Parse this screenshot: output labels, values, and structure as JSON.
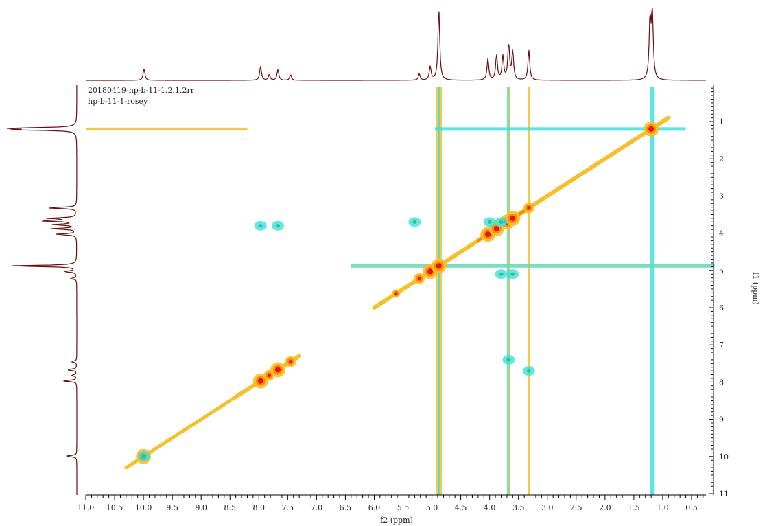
{
  "chart_data": {
    "type": "heatmap",
    "annotations": [
      "20180419-hp-b-11-1.2.1.2rr",
      "hp-b-11-1-rosey"
    ],
    "xlabel": "f2 (ppm)",
    "ylabel": "f1 (ppm)",
    "x_range": [
      11.0,
      0.0
    ],
    "y_range": [
      0.0,
      11.0
    ],
    "x_ticks": [
      "11.0",
      "10.5",
      "10.0",
      "9.5",
      "9.0",
      "8.5",
      "8.0",
      "7.5",
      "7.0",
      "6.5",
      "6.0",
      "5.5",
      "5.0",
      "4.5",
      "4.0",
      "3.5",
      "3.0",
      "2.5",
      "2.0",
      "1.5",
      "1.0",
      "0.5"
    ],
    "y_ticks": [
      "1",
      "2",
      "3",
      "4",
      "5",
      "6",
      "7",
      "8",
      "9",
      "10",
      "11"
    ],
    "colors": {
      "positive_base": "#f5c02a",
      "positive_mid": "#ff8a00",
      "positive_peak": "#e3161b",
      "negative": "#3ee0e0",
      "negative_mid": "#2fbf73",
      "projection": "#6b0d0d"
    },
    "projection_peaks": [
      {
        "ppm": 9.99,
        "height": 0.16
      },
      {
        "ppm": 7.97,
        "height": 0.2
      },
      {
        "ppm": 7.82,
        "height": 0.08
      },
      {
        "ppm": 7.67,
        "height": 0.15
      },
      {
        "ppm": 7.45,
        "height": 0.08
      },
      {
        "ppm": 5.22,
        "height": 0.09
      },
      {
        "ppm": 5.03,
        "height": 0.19
      },
      {
        "ppm": 4.88,
        "height": 1.0
      },
      {
        "ppm": 4.03,
        "height": 0.3
      },
      {
        "ppm": 3.88,
        "height": 0.35
      },
      {
        "ppm": 3.77,
        "height": 0.33
      },
      {
        "ppm": 3.67,
        "height": 0.5
      },
      {
        "ppm": 3.6,
        "height": 0.4
      },
      {
        "ppm": 3.32,
        "height": 0.42
      },
      {
        "ppm": 1.22,
        "height": 0.8
      },
      {
        "ppm": 1.18,
        "height": 0.96
      }
    ],
    "diagonal_peaks": [
      {
        "ppm": 10.0,
        "intensity": "high"
      },
      {
        "ppm": 7.97,
        "intensity": "high"
      },
      {
        "ppm": 7.82,
        "intensity": "medium"
      },
      {
        "ppm": 7.67,
        "intensity": "high"
      },
      {
        "ppm": 7.45,
        "intensity": "medium"
      },
      {
        "ppm": 5.62,
        "intensity": "low"
      },
      {
        "ppm": 5.22,
        "intensity": "medium"
      },
      {
        "ppm": 5.03,
        "intensity": "high"
      },
      {
        "ppm": 4.88,
        "intensity": "high"
      },
      {
        "ppm": 4.03,
        "intensity": "high"
      },
      {
        "ppm": 3.88,
        "intensity": "high"
      },
      {
        "ppm": 3.7,
        "intensity": "high"
      },
      {
        "ppm": 3.6,
        "intensity": "high"
      },
      {
        "ppm": 3.32,
        "intensity": "medium"
      },
      {
        "ppm": 1.2,
        "intensity": "high"
      }
    ],
    "cross_peaks": [
      {
        "x": 4.0,
        "y": 3.7,
        "sign": "negative"
      },
      {
        "x": 3.8,
        "y": 3.7,
        "sign": "negative"
      },
      {
        "x": 5.3,
        "y": 3.7,
        "sign": "negative"
      },
      {
        "x": 3.8,
        "y": 5.1,
        "sign": "negative"
      },
      {
        "x": 3.6,
        "y": 5.1,
        "sign": "negative"
      },
      {
        "x": 7.97,
        "y": 3.8,
        "sign": "negative"
      },
      {
        "x": 7.67,
        "y": 3.8,
        "sign": "negative"
      },
      {
        "x": 3.67,
        "y": 7.4,
        "sign": "negative"
      },
      {
        "x": 3.32,
        "y": 7.7,
        "sign": "negative"
      },
      {
        "x": 9.99,
        "y": 9.99,
        "sign": "negative"
      }
    ]
  }
}
